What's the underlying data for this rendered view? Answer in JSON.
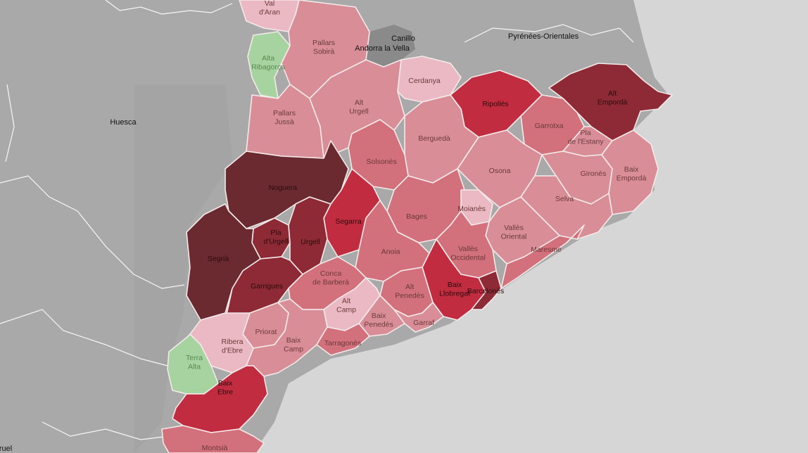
{
  "colors": {
    "sea": "#d6d6d6",
    "land_outside": "#a9a9a9",
    "land_outside_dark": "#9c9c9c",
    "andorra": "#8a8a8a",
    "scale_1_lightest": "#eab9c3",
    "scale_2_light": "#d98e97",
    "scale_3_medium": "#d2707b",
    "scale_4_strong": "#c22c40",
    "scale_5_dark": "#8e2a35",
    "scale_6_darkest": "#6a2a30",
    "no_data_green": "#a6d3a0"
  },
  "outside_labels": {
    "huesca": "Huesca",
    "pyrenees_orientales": "Pyrénées-Orientales",
    "canillo": "Canillo",
    "andorra_la_vella": "Andorra la Vella",
    "teruel": "ruel"
  },
  "comarques": {
    "val_daran": "Val d'Aran",
    "alta_ribagorca": "Alta Ribagorça",
    "pallars_sobira": "Pallars Sobirà",
    "pallars_jussa": "Pallars Jussà",
    "alt_urgell": "Alt Urgell",
    "cerdanya": "Cerdanya",
    "ripolles": "Ripollès",
    "alt_emporda": "Alt Empordà",
    "garrotxa": "Garrotxa",
    "pla_de_lestany": "Pla de l'Estany",
    "bergueda": "Berguedà",
    "solsones": "Solsonès",
    "osona": "Osona",
    "girones": "Gironès",
    "baix_emporda": "Baix Empordà",
    "noguera": "Noguera",
    "selva": "Selva",
    "bages": "Bages",
    "segarra": "Segarra",
    "moianes": "Moianès",
    "pla_durgell": "Pla d'Urgell",
    "urgell": "Urgell",
    "segria": "Segrià",
    "valles_oriental": "Vallès Oriental",
    "maresme": "Maresme",
    "anoia": "Anoia",
    "valles_occidental": "Vallès Occidental",
    "garrigues": "Garrigues",
    "conca_de_barbera": "Conca de Barberà",
    "baix_llobregat": "Baix Llobregat",
    "barcelones": "Barcelonès",
    "alt_penedes": "Alt Penedès",
    "alt_camp": "Alt Camp",
    "baix_penedes": "Baix Penedès",
    "garraf": "Garraf",
    "priorat": "Priorat",
    "ribera_debre": "Ribera d'Ebre",
    "baix_camp": "Baix Camp",
    "tarragones": "Tarragonès",
    "terra_alta": "Terra Alta",
    "baix_ebre": "Baix Ebre",
    "montsia": "Montsià"
  }
}
